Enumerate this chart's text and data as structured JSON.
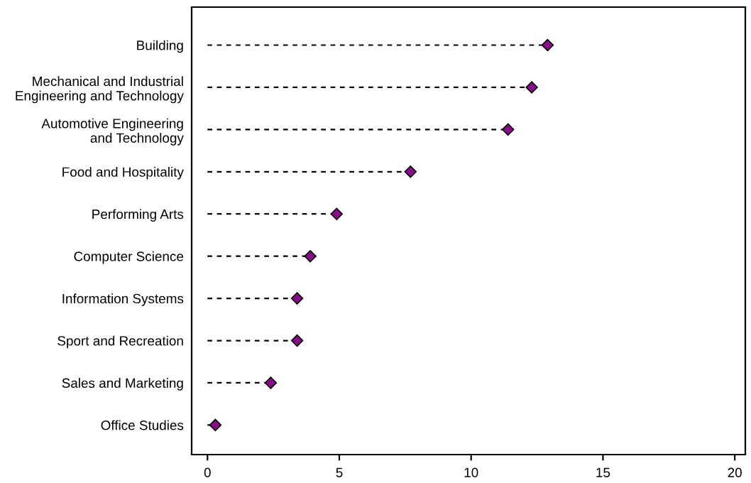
{
  "chart_data": {
    "type": "lollipop",
    "orientation": "horizontal",
    "categories": [
      "Building",
      "Mechanical and Industrial\nEngineering and Technology",
      "Automotive Engineering\nand Technology",
      "Food and Hospitality",
      "Performing Arts",
      "Computer Science",
      "Information Systems",
      "Sport and Recreation",
      "Sales and Marketing",
      "Office Studies"
    ],
    "values": [
      12.9,
      12.3,
      11.4,
      7.7,
      4.9,
      3.9,
      3.4,
      3.4,
      2.4,
      0.3
    ],
    "color": "#8b0a8b",
    "marker": "diamond",
    "line_style": "dashed",
    "xlim": [
      -0.6,
      20.4
    ],
    "xticks": [
      0,
      5,
      10,
      15,
      20
    ],
    "grid": false,
    "legend": false
  }
}
